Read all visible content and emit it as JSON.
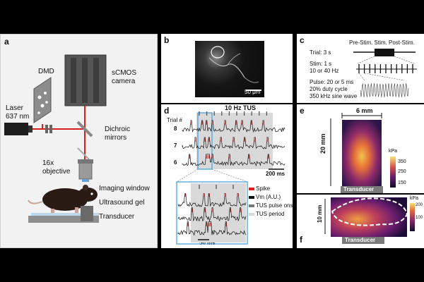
{
  "panel_a": {
    "letter": "a",
    "dmd": "DMD",
    "camera": [
      "sCMOS",
      "camera"
    ],
    "laser": [
      "Laser",
      "637 nm"
    ],
    "dichroic": [
      "Dichroic",
      "mirrors"
    ],
    "objective": [
      "16x",
      "objective"
    ],
    "imaging_window": "Imaging window",
    "ultrasound_gel": "Ultrasound gel",
    "transducer": "Transducer"
  },
  "panel_b": {
    "letter": "b",
    "scalebar": "50 μm"
  },
  "panel_c": {
    "letter": "c",
    "phases": "Pre-Stim.  Stim.  Post-Stim.",
    "trial": "Trial: 3 s",
    "stim": [
      "Stim: 1 s",
      "10 or 40 Hz"
    ],
    "pulse": [
      "Pulse: 20 or 5 ms",
      "20% duty cycle",
      "350 kHz sine wave"
    ]
  },
  "panel_d": {
    "letter": "d",
    "title": "10 Hz TUS",
    "trial_label": "Trial #",
    "trials": [
      "8",
      "7",
      "6"
    ],
    "scalebar_main": "200 ms",
    "scalebar_inset": "50 ms",
    "legend": [
      "Spike",
      "Vm (A.U.)",
      "TUS pulse onsets",
      "TUS period"
    ],
    "legend_colors": [
      "#e0201e",
      "#111111",
      "#777777",
      "#d9d9d9"
    ]
  },
  "panel_e": {
    "letter": "e",
    "width_label": "6 mm",
    "height_label": "20 mm",
    "cbar_unit": "kPa",
    "cbar_ticks": [
      "350",
      "250",
      "150"
    ],
    "transducer": "Transducer"
  },
  "panel_f": {
    "letter": "f",
    "height_label": "10 mm",
    "cbar_unit": "kPa",
    "cbar_ticks": [
      "200",
      "100"
    ],
    "transducer": "Transducer"
  }
}
